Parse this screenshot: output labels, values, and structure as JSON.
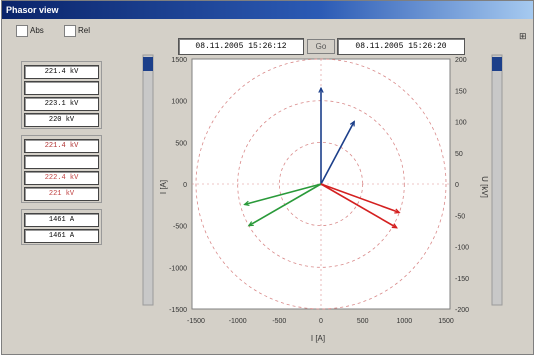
{
  "window": {
    "title": "Phasor view"
  },
  "options": [
    {
      "label": "Abs"
    },
    {
      "label": "Rel"
    }
  ],
  "time_range": {
    "start": "08.11.2005  15:26:12",
    "button": "Go",
    "end": "08.11.2005  15:26:20"
  },
  "left_panel": {
    "group1": [
      "221.4 kV",
      "",
      "223.1 kV",
      "220 kV"
    ],
    "group2": [
      "221.4 kV",
      "",
      "222.4 kV",
      "221 kV"
    ],
    "group3": [
      "1461 A",
      "1461 A"
    ]
  },
  "plot": {
    "x_ticks": [
      "-1500",
      "-1000",
      "-500",
      "0",
      "500",
      "1000",
      "1500"
    ],
    "y_ticks_left": [
      "1500",
      "1000",
      "500",
      "0",
      "-500",
      "-1000",
      "-1500"
    ],
    "y_ticks_right": [
      "200",
      "150",
      "100",
      "50",
      "0",
      "-50",
      "-100",
      "-150",
      "-200"
    ],
    "xlabel": "I [A]",
    "ylabel_left": "I [A]",
    "ylabel_right": "U [kV]",
    "colors": {
      "blue": "#1c3f8a",
      "green": "#2a9a3a",
      "red": "#d42020",
      "grid": "#d98a8a"
    },
    "phasors": [
      {
        "color": "blue",
        "angle_deg": 90,
        "magnitude": 1150
      },
      {
        "color": "blue",
        "angle_deg": 62,
        "magnitude": 850
      },
      {
        "color": "green",
        "angle_deg": 210,
        "magnitude": 1000
      },
      {
        "color": "green",
        "angle_deg": 195,
        "magnitude": 950
      },
      {
        "color": "red",
        "angle_deg": -30,
        "magnitude": 1050
      },
      {
        "color": "red",
        "angle_deg": -20,
        "magnitude": 1000
      }
    ]
  }
}
